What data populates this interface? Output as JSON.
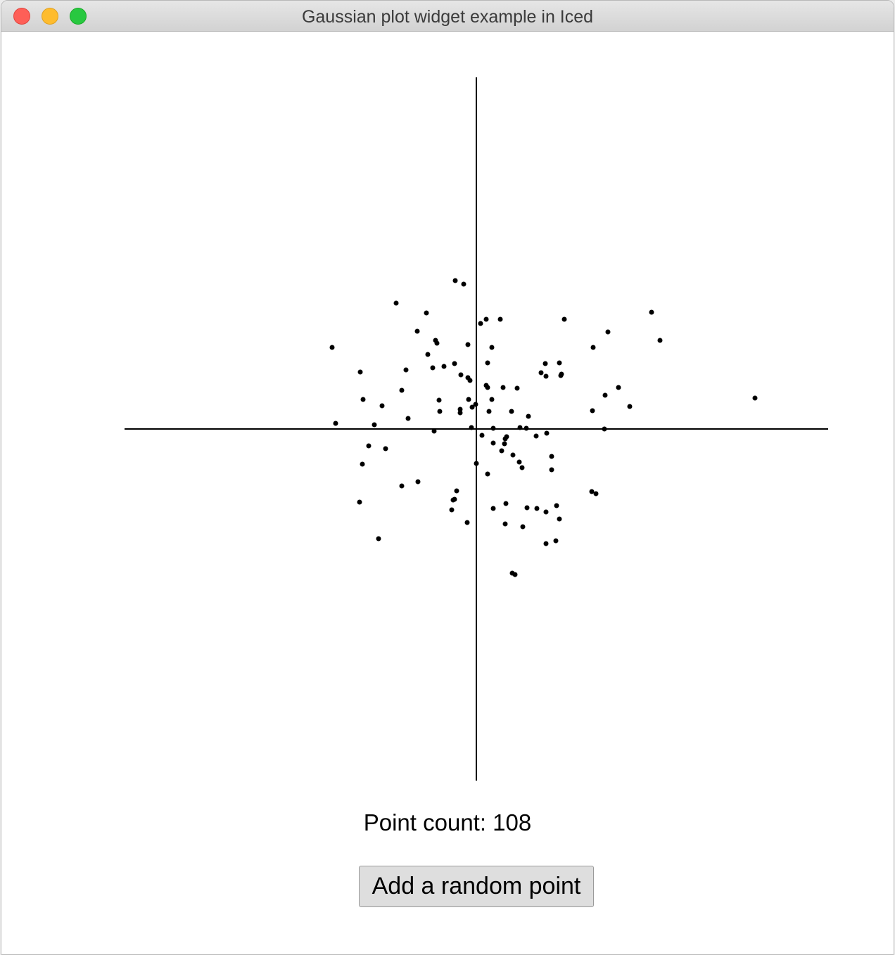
{
  "window": {
    "title": "Gaussian plot widget example in Iced"
  },
  "point_count": {
    "label": "Point count: 108"
  },
  "add_button": {
    "label": "Add a random point"
  },
  "chart_data": {
    "type": "scatter",
    "xlim": [
      -500,
      500
    ],
    "ylim": [
      -500,
      500
    ],
    "grid": false,
    "point_color": "#000000",
    "points": [
      [
        -30,
        211
      ],
      [
        -18,
        206
      ],
      [
        -114,
        179
      ],
      [
        -71,
        165
      ],
      [
        -84,
        139
      ],
      [
        6,
        150
      ],
      [
        14,
        156
      ],
      [
        34,
        156
      ],
      [
        125,
        156
      ],
      [
        249,
        166
      ],
      [
        187,
        138
      ],
      [
        -58,
        126
      ],
      [
        -56,
        122
      ],
      [
        -205,
        116
      ],
      [
        -12,
        120
      ],
      [
        22,
        116
      ],
      [
        166,
        116
      ],
      [
        261,
        126
      ],
      [
        -69,
        106
      ],
      [
        -165,
        81
      ],
      [
        -100,
        84
      ],
      [
        -62,
        87
      ],
      [
        -46,
        89
      ],
      [
        -31,
        93
      ],
      [
        -22,
        77
      ],
      [
        16,
        94
      ],
      [
        98,
        93
      ],
      [
        118,
        94
      ],
      [
        92,
        80
      ],
      [
        99,
        75
      ],
      [
        120,
        76
      ],
      [
        121,
        78
      ],
      [
        -12,
        73
      ],
      [
        -9,
        69
      ],
      [
        14,
        62
      ],
      [
        16,
        59
      ],
      [
        -106,
        55
      ],
      [
        38,
        59
      ],
      [
        58,
        58
      ],
      [
        183,
        48
      ],
      [
        202,
        59
      ],
      [
        -161,
        42
      ],
      [
        -53,
        41
      ],
      [
        -11,
        42
      ],
      [
        22,
        42
      ],
      [
        -134,
        33
      ],
      [
        -1,
        35
      ],
      [
        -6,
        31
      ],
      [
        218,
        32
      ],
      [
        396,
        44
      ],
      [
        -23,
        28
      ],
      [
        -52,
        25
      ],
      [
        -23,
        23
      ],
      [
        18,
        25
      ],
      [
        50,
        25
      ],
      [
        165,
        26
      ],
      [
        -97,
        15
      ],
      [
        74,
        18
      ],
      [
        -200,
        8
      ],
      [
        -145,
        6
      ],
      [
        -7,
        2
      ],
      [
        24,
        1
      ],
      [
        62,
        2
      ],
      [
        71,
        1
      ],
      [
        -60,
        -3
      ],
      [
        182,
        0
      ],
      [
        8,
        -9
      ],
      [
        85,
        -10
      ],
      [
        100,
        -6
      ],
      [
        43,
        -11
      ],
      [
        41,
        -14
      ],
      [
        40,
        -21
      ],
      [
        24,
        -20
      ],
      [
        -153,
        -24
      ],
      [
        -129,
        -28
      ],
      [
        36,
        -31
      ],
      [
        52,
        -37
      ],
      [
        107,
        -39
      ],
      [
        61,
        -47
      ],
      [
        65,
        -55
      ],
      [
        0,
        -49
      ],
      [
        -162,
        -50
      ],
      [
        107,
        -58
      ],
      [
        16,
        -64
      ],
      [
        -83,
        -75
      ],
      [
        -106,
        -81
      ],
      [
        -28,
        -88
      ],
      [
        164,
        -89
      ],
      [
        170,
        -92
      ],
      [
        -31,
        -100
      ],
      [
        -166,
        -104
      ],
      [
        -33,
        -101
      ],
      [
        42,
        -106
      ],
      [
        -35,
        -115
      ],
      [
        24,
        -113
      ],
      [
        72,
        -112
      ],
      [
        86,
        -113
      ],
      [
        99,
        -118
      ],
      [
        114,
        -109
      ],
      [
        118,
        -128
      ],
      [
        -13,
        -133
      ],
      [
        41,
        -135
      ],
      [
        66,
        -139
      ],
      [
        -139,
        -156
      ],
      [
        113,
        -159
      ],
      [
        99,
        -163
      ],
      [
        51,
        -205
      ],
      [
        55,
        -207
      ]
    ]
  }
}
